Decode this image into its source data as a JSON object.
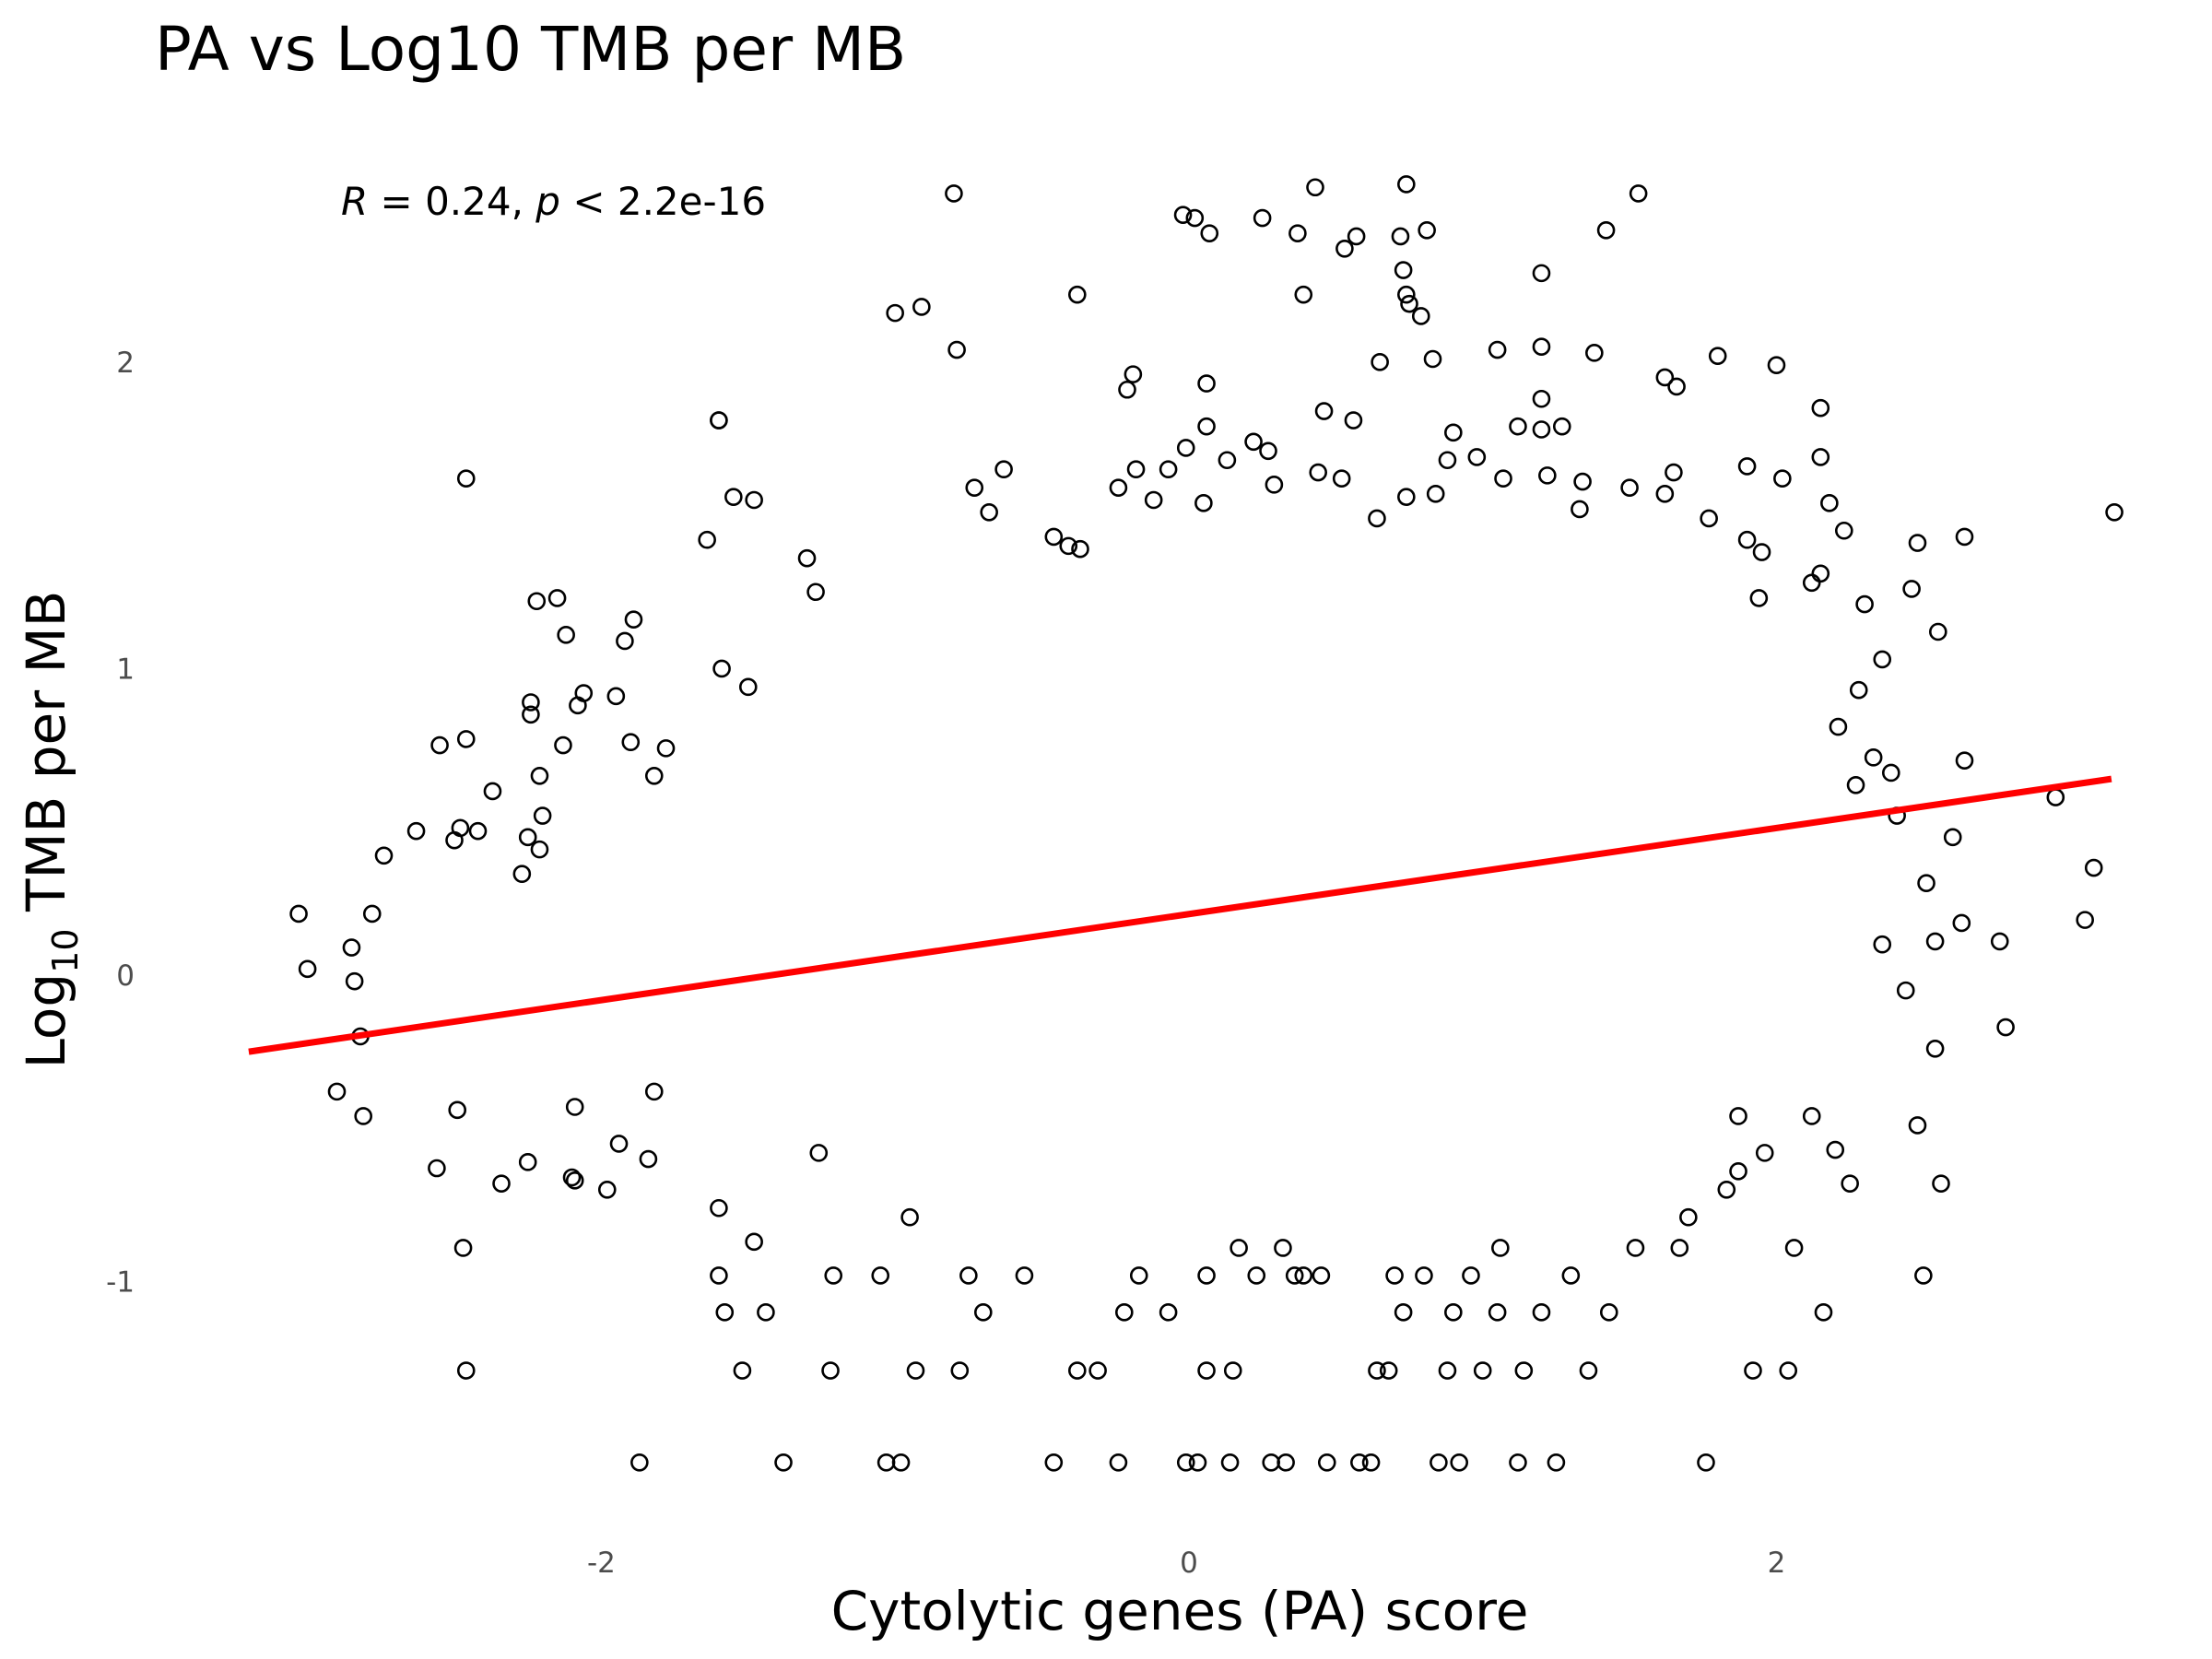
{
  "chart_data": {
    "type": "scatter",
    "title": "PA vs Log10 TMB per MB",
    "xlabel": "Cytolytic genes (PA) score",
    "ylabel_prefix": "Log",
    "ylabel_subscript": "10",
    "ylabel_suffix": " TMB per MB",
    "xlim": [
      -3.3,
      3.2
    ],
    "ylim": [
      -1.75,
      2.67
    ],
    "x_ticks": [
      -2,
      0,
      2
    ],
    "x_tick_labels": [
      "-2",
      "0",
      "2"
    ],
    "y_ticks": [
      -1,
      0,
      1,
      2
    ],
    "y_tick_labels": [
      "-1",
      "0",
      "1",
      "2"
    ],
    "grid": false,
    "legend": "none",
    "annotation": {
      "r_symbol": "R",
      "r_text": " = 0.24, ",
      "p_symbol": "p",
      "p_text": " < 2.2e-16"
    },
    "fit_line": {
      "type": "linear",
      "color": "#ff0000",
      "x": [
        -3.2,
        3.14
      ],
      "y": [
        -0.25,
        0.64
      ]
    },
    "point_color": "#000000",
    "series": [
      {
        "marker": "open-circle",
        "points": [
          [
            -0.8,
            2.55
          ],
          [
            -0.02,
            2.48
          ],
          [
            0.02,
            2.47
          ],
          [
            0.07,
            2.42
          ],
          [
            0.25,
            2.47
          ],
          [
            0.37,
            2.42
          ],
          [
            0.43,
            2.57
          ],
          [
            0.53,
            2.37
          ],
          [
            0.57,
            2.41
          ],
          [
            0.72,
            2.41
          ],
          [
            0.74,
            2.58
          ],
          [
            0.81,
            2.43
          ],
          [
            1.42,
            2.43
          ],
          [
            1.53,
            2.55
          ],
          [
            0.73,
            2.3
          ],
          [
            0.74,
            2.22
          ],
          [
            0.75,
            2.19
          ],
          [
            0.79,
            2.15
          ],
          [
            0.39,
            2.22
          ],
          [
            1.2,
            2.29
          ],
          [
            -0.38,
            2.22
          ],
          [
            -1.0,
            2.16
          ],
          [
            -0.91,
            2.18
          ],
          [
            -0.79,
            2.04
          ],
          [
            -1.6,
            1.81
          ],
          [
            -2.46,
            1.62
          ],
          [
            -0.19,
            1.96
          ],
          [
            -0.21,
            1.91
          ],
          [
            0.06,
            1.93
          ],
          [
            -1.6,
            1.81
          ],
          [
            1.05,
            2.04
          ],
          [
            1.2,
            2.05
          ],
          [
            1.38,
            2.03
          ],
          [
            0.83,
            2.01
          ],
          [
            0.65,
            2.0
          ],
          [
            1.8,
            2.02
          ],
          [
            2.0,
            1.99
          ],
          [
            1.62,
            1.95
          ],
          [
            1.66,
            1.92
          ],
          [
            2.15,
            1.85
          ],
          [
            2.15,
            1.69
          ],
          [
            1.2,
            1.88
          ],
          [
            1.2,
            1.78
          ],
          [
            1.27,
            1.79
          ],
          [
            1.12,
            1.79
          ],
          [
            0.9,
            1.77
          ],
          [
            0.56,
            1.81
          ],
          [
            0.46,
            1.84
          ],
          [
            -0.24,
            1.59
          ],
          [
            -0.63,
            1.65
          ],
          [
            -0.73,
            1.59
          ],
          [
            -1.48,
            1.55
          ],
          [
            -1.55,
            1.56
          ],
          [
            -1.64,
            1.42
          ],
          [
            -0.68,
            1.51
          ],
          [
            -0.46,
            1.43
          ],
          [
            -0.41,
            1.4
          ],
          [
            -1.3,
            1.36
          ],
          [
            -1.27,
            1.25
          ],
          [
            -0.37,
            1.39
          ],
          [
            -2.22,
            1.22
          ],
          [
            -2.15,
            1.23
          ],
          [
            -2.12,
            1.11
          ],
          [
            -1.92,
            1.09
          ],
          [
            -1.89,
            1.16
          ],
          [
            -1.59,
            1.0
          ],
          [
            -1.5,
            0.94
          ],
          [
            -2.24,
            0.89
          ],
          [
            -2.24,
            0.85
          ],
          [
            -2.06,
            0.92
          ],
          [
            -2.08,
            0.88
          ],
          [
            -1.95,
            0.91
          ],
          [
            -2.55,
            0.75
          ],
          [
            -2.46,
            0.77
          ],
          [
            -2.13,
            0.75
          ],
          [
            -1.82,
            0.65
          ],
          [
            -1.9,
            0.76
          ],
          [
            -1.78,
            0.74
          ],
          [
            -2.63,
            0.47
          ],
          [
            -2.5,
            0.44
          ],
          [
            -2.48,
            0.48
          ],
          [
            -2.42,
            0.47
          ],
          [
            -2.37,
            0.6
          ],
          [
            -2.21,
            0.65
          ],
          [
            -2.2,
            0.52
          ],
          [
            -2.21,
            0.41
          ],
          [
            -2.27,
            0.33
          ],
          [
            -2.25,
            0.45
          ],
          [
            -2.74,
            0.39
          ],
          [
            -2.78,
            0.2
          ],
          [
            -3.03,
            0.2
          ],
          [
            -3.0,
            0.02
          ],
          [
            -2.85,
            0.09
          ],
          [
            -2.84,
            -0.02
          ],
          [
            -2.82,
            -0.2
          ],
          [
            -2.9,
            -0.38
          ],
          [
            -2.81,
            -0.46
          ],
          [
            -2.56,
            -0.63
          ],
          [
            -2.49,
            -0.44
          ],
          [
            -2.47,
            -0.89
          ],
          [
            -2.46,
            -1.29
          ],
          [
            -2.34,
            -0.68
          ],
          [
            -2.25,
            -0.61
          ],
          [
            -2.09,
            -0.67
          ],
          [
            -2.1,
            -0.66
          ],
          [
            -2.09,
            -0.43
          ],
          [
            -1.98,
            -0.7
          ],
          [
            -1.94,
            -0.55
          ],
          [
            -1.84,
            -0.6
          ],
          [
            -1.82,
            -0.38
          ],
          [
            -1.87,
            -1.59
          ],
          [
            -1.6,
            -0.76
          ],
          [
            -1.6,
            -0.98
          ],
          [
            -1.58,
            -1.1
          ],
          [
            -1.52,
            -1.29
          ],
          [
            -1.48,
            -0.87
          ],
          [
            -1.44,
            -1.1
          ],
          [
            -1.38,
            -1.59
          ],
          [
            -1.26,
            -0.58
          ],
          [
            -1.21,
            -0.98
          ],
          [
            -1.22,
            -1.29
          ],
          [
            -1.05,
            -0.98
          ],
          [
            -1.03,
            -1.59
          ],
          [
            -0.98,
            -1.59
          ],
          [
            -0.95,
            -0.79
          ],
          [
            -0.93,
            -1.29
          ],
          [
            -0.78,
            -1.29
          ],
          [
            -0.75,
            -0.98
          ],
          [
            -0.7,
            -1.1
          ],
          [
            -0.56,
            -0.98
          ],
          [
            -0.46,
            -1.59
          ],
          [
            -0.38,
            -1.29
          ],
          [
            -0.31,
            -1.29
          ],
          [
            -0.24,
            -1.59
          ],
          [
            -0.22,
            -1.1
          ],
          [
            -0.17,
            -0.98
          ],
          [
            -0.07,
            -1.1
          ],
          [
            -0.01,
            -1.59
          ],
          [
            0.03,
            -1.59
          ],
          [
            0.06,
            -1.29
          ],
          [
            0.06,
            -0.98
          ],
          [
            0.15,
            -1.29
          ],
          [
            0.17,
            -0.89
          ],
          [
            0.14,
            -1.59
          ],
          [
            0.23,
            -0.98
          ],
          [
            0.28,
            -1.59
          ],
          [
            0.32,
            -0.89
          ],
          [
            0.33,
            -1.59
          ],
          [
            0.36,
            -0.98
          ],
          [
            0.39,
            -0.98
          ],
          [
            0.45,
            -0.98
          ],
          [
            0.47,
            -1.59
          ],
          [
            0.58,
            -1.59
          ],
          [
            0.62,
            -1.59
          ],
          [
            0.64,
            -1.29
          ],
          [
            0.68,
            -1.29
          ],
          [
            0.7,
            -0.98
          ],
          [
            0.73,
            -1.1
          ],
          [
            0.8,
            -0.98
          ],
          [
            0.9,
            -1.1
          ],
          [
            0.85,
            -1.59
          ],
          [
            0.88,
            -1.29
          ],
          [
            0.92,
            -1.59
          ],
          [
            0.96,
            -0.98
          ],
          [
            1.0,
            -1.29
          ],
          [
            1.05,
            -1.1
          ],
          [
            1.06,
            -0.89
          ],
          [
            1.12,
            -1.59
          ],
          [
            1.14,
            -1.29
          ],
          [
            1.2,
            -1.1
          ],
          [
            1.25,
            -1.59
          ],
          [
            1.3,
            -0.98
          ],
          [
            1.36,
            -1.29
          ],
          [
            1.43,
            -1.1
          ],
          [
            1.52,
            -0.89
          ],
          [
            1.67,
            -0.89
          ],
          [
            1.7,
            -0.79
          ],
          [
            1.76,
            -1.59
          ],
          [
            1.83,
            -0.7
          ],
          [
            1.87,
            -0.64
          ],
          [
            1.87,
            -0.46
          ],
          [
            1.92,
            -1.29
          ],
          [
            1.96,
            -0.58
          ],
          [
            2.04,
            -1.29
          ],
          [
            2.06,
            -0.89
          ],
          [
            2.12,
            -0.46
          ],
          [
            2.16,
            -1.1
          ],
          [
            2.25,
            -0.68
          ],
          [
            2.2,
            -0.57
          ],
          [
            2.56,
            -0.68
          ],
          [
            2.5,
            -0.98
          ],
          [
            2.48,
            -0.49
          ],
          [
            2.54,
            -0.24
          ],
          [
            2.44,
            -0.05
          ],
          [
            2.36,
            0.1
          ],
          [
            2.54,
            0.11
          ],
          [
            2.63,
            0.17
          ],
          [
            2.76,
            0.11
          ],
          [
            2.78,
            -0.17
          ],
          [
            2.95,
            0.58
          ],
          [
            3.05,
            0.18
          ],
          [
            3.08,
            0.35
          ],
          [
            3.15,
            1.51
          ],
          [
            2.64,
            1.43
          ],
          [
            2.48,
            1.41
          ],
          [
            2.55,
            1.12
          ],
          [
            2.6,
            0.45
          ],
          [
            2.64,
            0.7
          ],
          [
            2.51,
            0.3
          ],
          [
            2.41,
            0.52
          ],
          [
            2.33,
            0.71
          ],
          [
            2.28,
            0.93
          ],
          [
            2.21,
            0.81
          ],
          [
            2.27,
            0.62
          ],
          [
            2.39,
            0.66
          ],
          [
            2.12,
            1.28
          ],
          [
            1.9,
            1.66
          ],
          [
            1.9,
            1.42
          ],
          [
            1.95,
            1.38
          ],
          [
            2.02,
            1.62
          ],
          [
            1.77,
            1.49
          ],
          [
            1.94,
            1.23
          ],
          [
            2.46,
            1.26
          ],
          [
            2.36,
            1.03
          ],
          [
            2.3,
            1.21
          ],
          [
            2.15,
            1.31
          ],
          [
            2.18,
            1.54
          ],
          [
            2.23,
            1.45
          ],
          [
            1.65,
            1.64
          ],
          [
            1.62,
            1.57
          ],
          [
            1.5,
            1.59
          ],
          [
            1.33,
            1.52
          ],
          [
            1.34,
            1.61
          ],
          [
            1.22,
            1.63
          ],
          [
            1.07,
            1.62
          ],
          [
            0.98,
            1.69
          ],
          [
            0.88,
            1.68
          ],
          [
            0.84,
            1.57
          ],
          [
            0.74,
            1.56
          ],
          [
            0.64,
            1.49
          ],
          [
            0.52,
            1.62
          ],
          [
            0.44,
            1.64
          ],
          [
            0.29,
            1.6
          ],
          [
            0.27,
            1.71
          ],
          [
            0.22,
            1.74
          ],
          [
            0.13,
            1.68
          ],
          [
            0.06,
            1.79
          ],
          [
            -0.01,
            1.72
          ],
          [
            -0.12,
            1.55
          ],
          [
            -0.18,
            1.65
          ],
          [
            -0.07,
            1.65
          ],
          [
            0.05,
            1.54
          ]
        ]
      }
    ]
  }
}
